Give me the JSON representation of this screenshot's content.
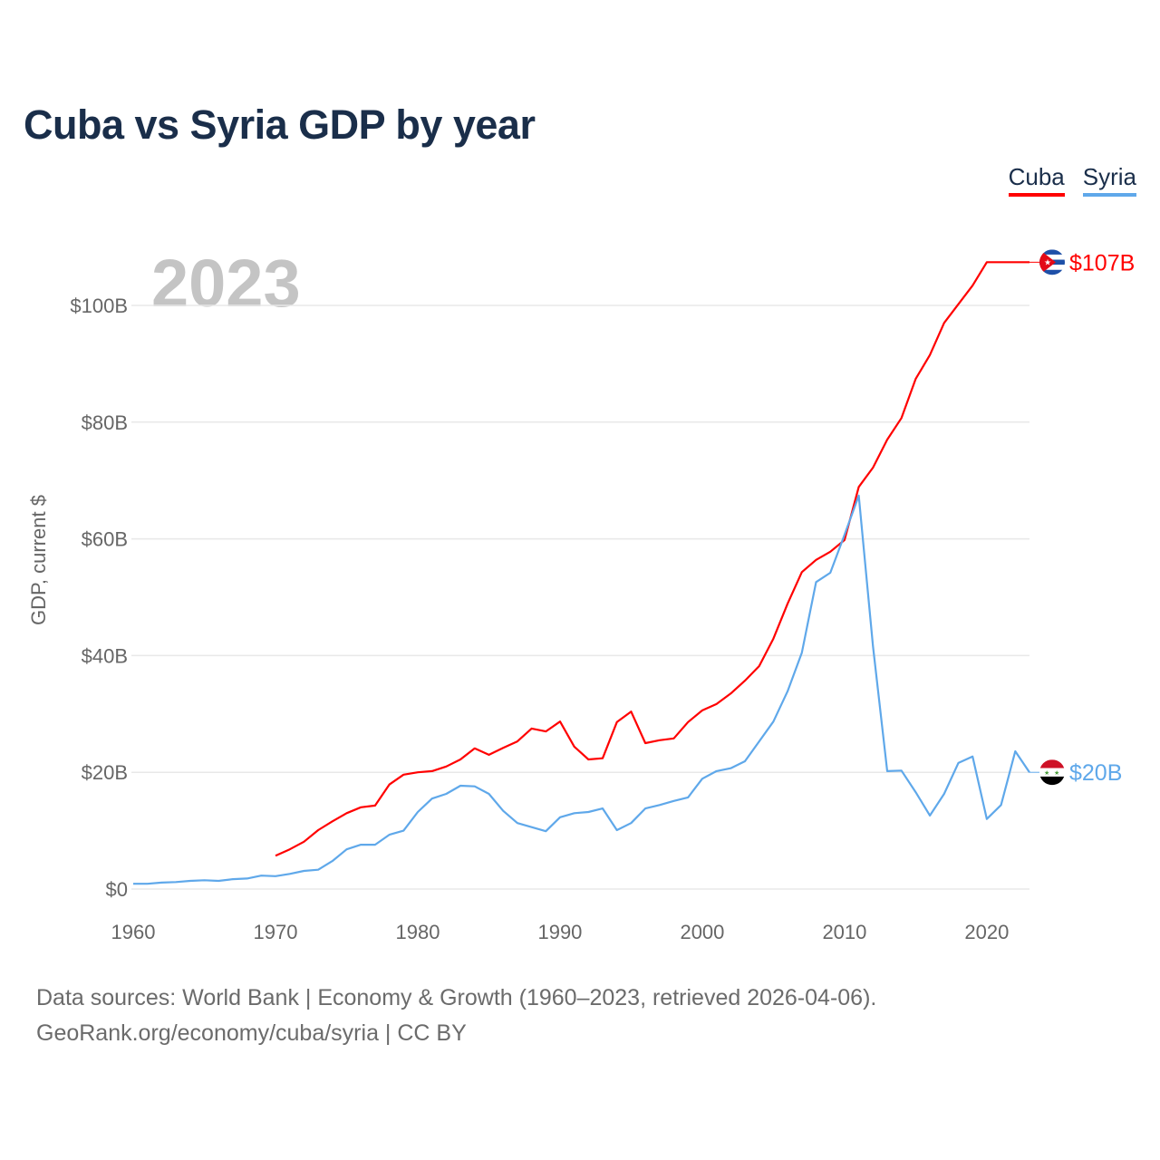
{
  "title": "Cuba vs Syria GDP by year",
  "year_label": "2023",
  "footer": {
    "line1": "Data sources: World Bank | Economy & Growth (1960–2023, retrieved 2026-04-06).",
    "line2": "GeoRank.org/economy/cuba/syria | CC BY"
  },
  "chart_data": {
    "type": "line",
    "title": "Cuba vs Syria GDP by year",
    "xlabel": "",
    "ylabel": "GDP, current $",
    "xlim": [
      1960,
      2023
    ],
    "ylim": [
      0,
      110
    ],
    "x_ticks": [
      1960,
      1970,
      1980,
      1990,
      2000,
      2010,
      2020
    ],
    "y_ticks": [
      0,
      20,
      40,
      60,
      80,
      100
    ],
    "y_tick_labels": [
      "$0",
      "$20B",
      "$40B",
      "$60B",
      "$80B",
      "$100B"
    ],
    "grid": "horizontal",
    "legend_placement": "top-right",
    "series": [
      {
        "name": "Cuba",
        "color": "#ff0000",
        "end_label": "$107B",
        "start_year": 1970,
        "values": [
          5.7,
          6.8,
          8.1,
          10.1,
          11.6,
          13.0,
          14.0,
          14.3,
          17.9,
          19.6,
          20.0,
          20.2,
          21.0,
          22.2,
          24.1,
          23.0,
          24.2,
          25.3,
          27.5,
          27.0,
          28.7,
          24.4,
          22.2,
          22.4,
          28.6,
          30.4,
          25.0,
          25.5,
          25.8,
          28.6,
          30.6,
          31.7,
          33.5,
          35.7,
          38.2,
          42.9,
          48.9,
          54.3,
          56.4,
          57.8,
          59.8,
          68.9,
          72.2,
          77.0,
          80.7,
          87.4,
          91.5,
          97.0,
          100.2,
          103.4,
          107.4,
          107.4,
          107.4,
          107.4
        ]
      },
      {
        "name": "Syria",
        "color": "#5fa8ea",
        "end_label": "$20B",
        "start_year": 1960,
        "values": [
          0.9,
          0.9,
          1.1,
          1.2,
          1.4,
          1.5,
          1.4,
          1.7,
          1.8,
          2.3,
          2.2,
          2.6,
          3.1,
          3.3,
          4.8,
          6.8,
          7.6,
          7.6,
          9.3,
          10.0,
          13.2,
          15.5,
          16.3,
          17.7,
          17.6,
          16.3,
          13.4,
          11.3,
          10.6,
          9.9,
          12.3,
          13.0,
          13.2,
          13.8,
          10.1,
          11.3,
          13.8,
          14.4,
          15.1,
          15.7,
          18.9,
          20.2,
          20.7,
          21.9,
          25.3,
          28.7,
          33.9,
          40.5,
          52.6,
          54.2,
          60.7,
          67.4,
          41.6,
          20.2,
          20.3,
          16.6,
          12.6,
          16.3,
          21.6,
          22.7,
          12.0,
          14.4,
          23.6,
          20.0
        ]
      }
    ]
  }
}
